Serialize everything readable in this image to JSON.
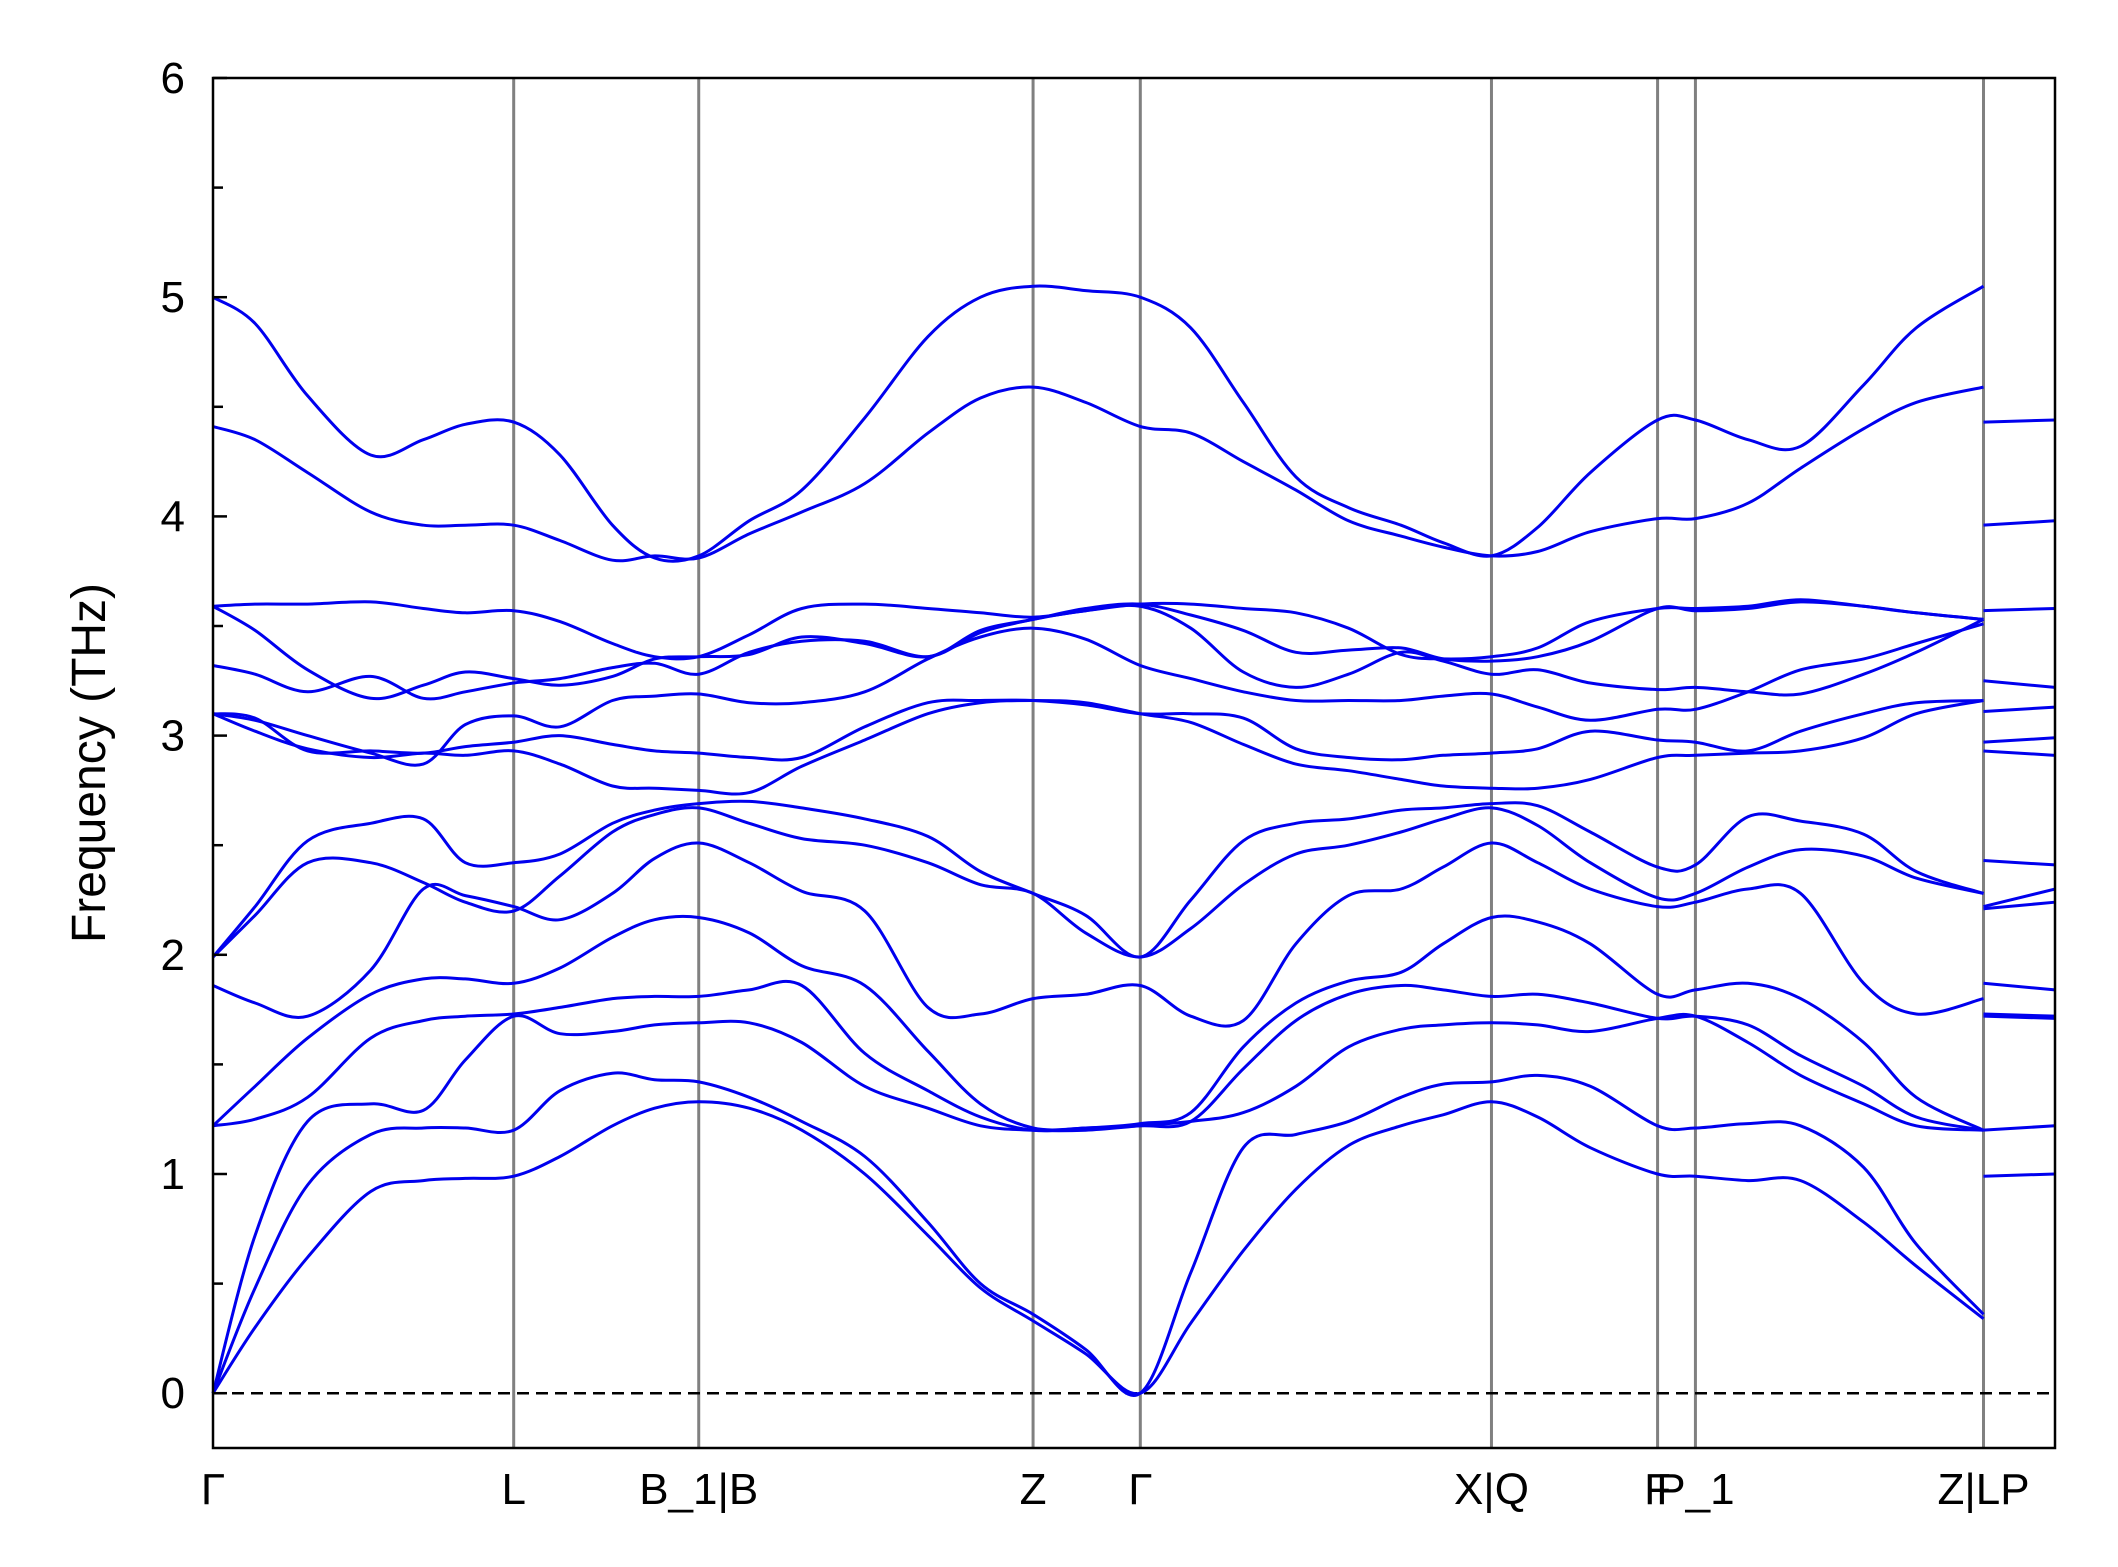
{
  "chart_data": {
    "type": "line",
    "title": "",
    "xlabel": "",
    "ylabel": "Frequency (THz)",
    "ylim": [
      -0.25,
      6
    ],
    "xlim": [
      0,
      8.76
    ],
    "yticks": [
      0,
      1,
      2,
      3,
      4,
      5,
      6
    ],
    "y_minor_step": 0.5,
    "grid": false,
    "legend": "none",
    "line_color": "#0000ee",
    "vline_color": "#808080",
    "zero_line": {
      "y": 0,
      "style": "dashed",
      "color": "#000000"
    },
    "high_symmetry_points": [
      {
        "x": 0.0,
        "label": "Γ"
      },
      {
        "x": 1.43,
        "label": "L"
      },
      {
        "x": 2.31,
        "label": "B_1|B"
      },
      {
        "x": 3.9,
        "label": "Z"
      },
      {
        "x": 4.41,
        "label": "Γ"
      },
      {
        "x": 6.08,
        "label": "X|Q"
      },
      {
        "x": 6.87,
        "label": "F"
      },
      {
        "x": 7.05,
        "label": "P_1"
      },
      {
        "x": 8.42,
        "label": "Z|LP"
      }
    ],
    "bands_x": [
      0.0,
      0.2,
      0.45,
      0.75,
      1.0,
      1.2,
      1.43,
      1.65,
      1.9,
      2.1,
      2.31,
      2.55,
      2.8,
      3.1,
      3.4,
      3.65,
      3.9,
      4.15,
      4.41,
      4.65,
      4.9,
      5.15,
      5.4,
      5.65,
      5.85,
      6.08,
      6.3,
      6.55,
      6.87,
      7.05,
      7.3,
      7.55,
      7.85,
      8.1,
      8.42
    ],
    "series": [
      {
        "values": [
          0.0,
          0.3,
          0.62,
          0.92,
          0.97,
          0.98,
          0.99,
          1.08,
          1.22,
          1.3,
          1.33,
          1.3,
          1.2,
          1.0,
          0.72,
          0.48,
          0.33,
          0.18,
          0.0,
          0.32,
          0.65,
          0.93,
          1.13,
          1.22,
          1.27,
          1.33,
          1.26,
          1.12,
          1.0,
          0.99,
          0.97,
          0.97,
          0.78,
          0.58,
          0.34
        ]
      },
      {
        "values": [
          0.0,
          0.48,
          0.95,
          1.18,
          1.21,
          1.21,
          1.2,
          1.38,
          1.46,
          1.43,
          1.42,
          1.35,
          1.24,
          1.08,
          0.78,
          0.5,
          0.36,
          0.2,
          0.0,
          0.55,
          1.12,
          1.18,
          1.24,
          1.35,
          1.41,
          1.42,
          1.45,
          1.4,
          1.22,
          1.21,
          1.23,
          1.22,
          1.03,
          0.68,
          0.36
        ]
      },
      {
        "values": [
          0.0,
          0.72,
          1.24,
          1.32,
          1.29,
          1.52,
          1.72,
          1.64,
          1.65,
          1.68,
          1.69,
          1.69,
          1.6,
          1.4,
          1.3,
          1.22,
          1.2,
          1.2,
          1.22,
          1.24,
          1.28,
          1.4,
          1.58,
          1.66,
          1.68,
          1.69,
          1.68,
          1.65,
          1.71,
          1.72,
          1.6,
          1.45,
          1.32,
          1.22,
          1.2
        ]
      },
      {
        "values": [
          1.22,
          1.25,
          1.35,
          1.62,
          1.7,
          1.72,
          1.73,
          1.76,
          1.8,
          1.81,
          1.81,
          1.84,
          1.86,
          1.55,
          1.38,
          1.26,
          1.2,
          1.21,
          1.22,
          1.24,
          1.48,
          1.7,
          1.82,
          1.86,
          1.84,
          1.81,
          1.82,
          1.78,
          1.71,
          1.72,
          1.68,
          1.54,
          1.4,
          1.26,
          1.2
        ]
      },
      {
        "values": [
          1.22,
          1.4,
          1.62,
          1.82,
          1.89,
          1.89,
          1.87,
          1.94,
          2.08,
          2.16,
          2.17,
          2.1,
          1.95,
          1.86,
          1.56,
          1.32,
          1.21,
          1.21,
          1.23,
          1.28,
          1.58,
          1.78,
          1.88,
          1.92,
          2.05,
          2.17,
          2.15,
          2.05,
          1.82,
          1.84,
          1.87,
          1.8,
          1.6,
          1.35,
          1.2
        ]
      },
      {
        "values": [
          1.86,
          1.78,
          1.72,
          1.93,
          2.3,
          2.27,
          2.22,
          2.16,
          2.28,
          2.44,
          2.51,
          2.42,
          2.29,
          2.2,
          1.76,
          1.73,
          1.8,
          1.82,
          1.86,
          1.72,
          1.7,
          2.05,
          2.27,
          2.3,
          2.4,
          2.51,
          2.42,
          2.3,
          2.22,
          2.24,
          2.3,
          2.28,
          1.87,
          1.73,
          1.8
        ]
      },
      {
        "values": [
          1.99,
          2.18,
          2.42,
          2.42,
          2.33,
          2.24,
          2.2,
          2.36,
          2.56,
          2.64,
          2.67,
          2.6,
          2.53,
          2.5,
          2.42,
          2.32,
          2.28,
          2.1,
          1.99,
          2.12,
          2.32,
          2.46,
          2.5,
          2.56,
          2.62,
          2.67,
          2.59,
          2.42,
          2.26,
          2.28,
          2.4,
          2.48,
          2.45,
          2.35,
          2.28
        ]
      },
      {
        "values": [
          1.99,
          2.22,
          2.52,
          2.6,
          2.62,
          2.42,
          2.42,
          2.46,
          2.6,
          2.66,
          2.69,
          2.7,
          2.67,
          2.62,
          2.54,
          2.38,
          2.28,
          2.18,
          1.99,
          2.25,
          2.52,
          2.6,
          2.62,
          2.66,
          2.67,
          2.69,
          2.68,
          2.56,
          2.4,
          2.41,
          2.63,
          2.61,
          2.55,
          2.38,
          2.28
        ]
      },
      {
        "values": [
          3.1,
          3.02,
          2.94,
          2.9,
          2.92,
          2.91,
          2.93,
          2.87,
          2.77,
          2.76,
          2.75,
          2.74,
          2.86,
          2.98,
          3.1,
          3.15,
          3.16,
          3.15,
          3.1,
          3.06,
          2.96,
          2.87,
          2.84,
          2.8,
          2.77,
          2.76,
          2.76,
          2.8,
          2.9,
          2.91,
          2.92,
          2.93,
          2.99,
          3.1,
          3.16
        ]
      },
      {
        "values": [
          3.1,
          3.08,
          2.93,
          2.93,
          2.92,
          2.95,
          2.97,
          3.0,
          2.96,
          2.93,
          2.92,
          2.9,
          2.9,
          3.04,
          3.15,
          3.16,
          3.16,
          3.14,
          3.1,
          3.1,
          3.08,
          2.94,
          2.9,
          2.89,
          2.91,
          2.92,
          2.94,
          3.02,
          2.98,
          2.97,
          2.93,
          3.02,
          3.1,
          3.15,
          3.16
        ]
      },
      {
        "values": [
          3.1,
          3.07,
          3.0,
          2.92,
          2.87,
          3.05,
          3.09,
          3.04,
          3.16,
          3.18,
          3.19,
          3.15,
          3.15,
          3.2,
          3.35,
          3.45,
          3.49,
          3.44,
          3.32,
          3.26,
          3.2,
          3.16,
          3.16,
          3.16,
          3.18,
          3.19,
          3.13,
          3.07,
          3.12,
          3.12,
          3.2,
          3.3,
          3.35,
          3.42,
          3.51
        ]
      },
      {
        "values": [
          3.32,
          3.28,
          3.2,
          3.27,
          3.17,
          3.2,
          3.24,
          3.26,
          3.31,
          3.33,
          3.28,
          3.38,
          3.43,
          3.43,
          3.36,
          3.47,
          3.53,
          3.57,
          3.59,
          3.49,
          3.29,
          3.22,
          3.28,
          3.38,
          3.34,
          3.28,
          3.3,
          3.24,
          3.21,
          3.22,
          3.2,
          3.19,
          3.28,
          3.38,
          3.53
        ]
      },
      {
        "values": [
          3.59,
          3.48,
          3.3,
          3.17,
          3.23,
          3.29,
          3.26,
          3.23,
          3.27,
          3.35,
          3.36,
          3.37,
          3.45,
          3.42,
          3.36,
          3.48,
          3.53,
          3.58,
          3.6,
          3.55,
          3.48,
          3.38,
          3.39,
          3.4,
          3.35,
          3.34,
          3.36,
          3.43,
          3.58,
          3.57,
          3.58,
          3.61,
          3.59,
          3.56,
          3.53
        ]
      },
      {
        "values": [
          3.59,
          3.6,
          3.6,
          3.61,
          3.58,
          3.56,
          3.57,
          3.52,
          3.42,
          3.36,
          3.36,
          3.46,
          3.58,
          3.6,
          3.58,
          3.56,
          3.54,
          3.57,
          3.6,
          3.6,
          3.58,
          3.56,
          3.49,
          3.37,
          3.35,
          3.36,
          3.4,
          3.52,
          3.58,
          3.58,
          3.59,
          3.62,
          3.59,
          3.56,
          3.53
        ]
      },
      {
        "values": [
          4.41,
          4.35,
          4.2,
          4.02,
          3.96,
          3.96,
          3.96,
          3.89,
          3.8,
          3.82,
          3.81,
          3.92,
          4.02,
          4.15,
          4.38,
          4.54,
          4.59,
          4.52,
          4.41,
          4.38,
          4.25,
          4.12,
          3.98,
          3.91,
          3.86,
          3.82,
          3.84,
          3.93,
          3.99,
          3.99,
          4.06,
          4.22,
          4.4,
          4.52,
          4.59
        ]
      },
      {
        "values": [
          5.0,
          4.88,
          4.55,
          4.28,
          4.35,
          4.42,
          4.43,
          4.28,
          3.96,
          3.81,
          3.82,
          3.98,
          4.12,
          4.45,
          4.82,
          5.0,
          5.05,
          5.03,
          5.0,
          4.86,
          4.52,
          4.18,
          4.04,
          3.96,
          3.88,
          3.82,
          3.95,
          4.2,
          4.44,
          4.44,
          4.35,
          4.32,
          4.6,
          4.86,
          5.05
        ]
      }
    ],
    "lp_segment": {
      "x_start": 8.42,
      "x_end": 8.76,
      "bands": [
        [
          0.99,
          1.0
        ],
        [
          1.2,
          1.22
        ],
        [
          1.72,
          1.71
        ],
        [
          1.73,
          1.72
        ],
        [
          1.87,
          1.84
        ],
        [
          2.21,
          2.24
        ],
        [
          2.22,
          2.3
        ],
        [
          2.43,
          2.41
        ],
        [
          2.93,
          2.91
        ],
        [
          2.97,
          2.99
        ],
        [
          3.11,
          3.13
        ],
        [
          3.25,
          3.22
        ],
        [
          3.57,
          3.58
        ],
        [
          3.96,
          3.98
        ],
        [
          4.43,
          4.44
        ]
      ]
    }
  }
}
